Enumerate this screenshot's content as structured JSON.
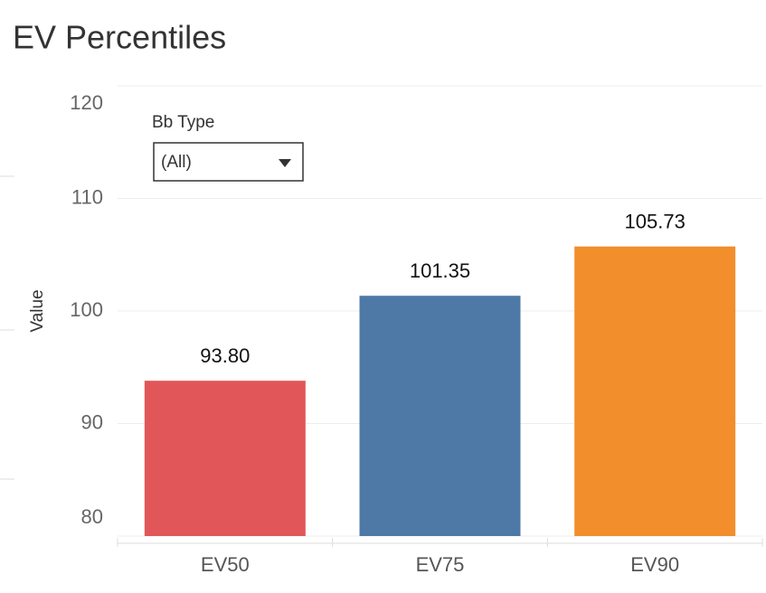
{
  "chart_data": {
    "type": "bar",
    "title": "EV Percentiles",
    "y_label": "Value",
    "categories": [
      "EV50",
      "EV75",
      "EV90"
    ],
    "values": [
      93.8,
      101.35,
      105.73
    ],
    "value_labels": [
      "93.80",
      "101.35",
      "105.73"
    ],
    "colors": [
      "#e15759",
      "#4e79a7",
      "#f28e2b"
    ],
    "ylim": [
      80,
      120
    ],
    "yticks": [
      80,
      90,
      100,
      110,
      120
    ],
    "grid": true,
    "filter": {
      "label": "Bb Type",
      "value": "(All)"
    }
  }
}
